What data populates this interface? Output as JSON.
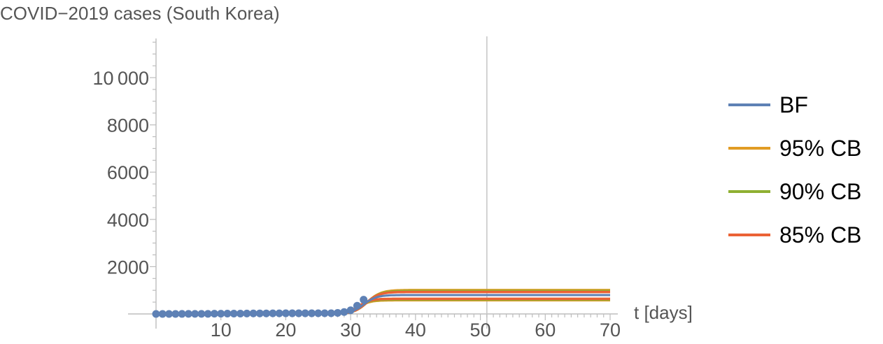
{
  "chart_data": {
    "type": "line",
    "title": "COVID−2019 cases (South Korea)",
    "xlabel": "t [days]",
    "ylabel": "",
    "xlim": [
      0,
      71
    ],
    "ylim": [
      -200,
      11800
    ],
    "xticks": [
      10,
      20,
      30,
      40,
      50,
      60,
      70
    ],
    "yticks": [
      2000,
      4000,
      6000,
      8000,
      10000
    ],
    "ytick_labels": [
      "2000",
      "4000",
      "6000",
      "8000",
      "10 000"
    ],
    "xtick_labels": [
      "10",
      "20",
      "30",
      "40",
      "50",
      "60",
      "70"
    ],
    "vline_x": 51,
    "grid": false,
    "legend_position": "right",
    "series": [
      {
        "name": "BF",
        "color": "#5e81b5",
        "final": 800,
        "midpoint": 32,
        "rate": 1.0
      },
      {
        "name": "95% CB",
        "color": "#e19c24",
        "final": 1010,
        "midpoint": 32.6,
        "rate": 0.95
      },
      {
        "name": "90% CB",
        "color": "#8fb032",
        "final": 970,
        "midpoint": 32.5,
        "rate": 0.97
      },
      {
        "name": "85% CB",
        "color": "#eb6235",
        "final": 930,
        "midpoint": 32.4,
        "rate": 0.99
      }
    ],
    "lower_bounds": [
      {
        "color": "#e19c24",
        "final": 580
      },
      {
        "color": "#8fb032",
        "final": 610
      },
      {
        "color": "#eb6235",
        "final": 640
      }
    ],
    "points": {
      "color": "#5e81b5",
      "x": [
        0,
        1,
        2,
        3,
        4,
        5,
        6,
        7,
        8,
        9,
        10,
        11,
        12,
        13,
        14,
        15,
        16,
        17,
        18,
        19,
        20,
        21,
        22,
        23,
        24,
        25,
        26,
        27,
        28,
        29,
        30,
        31,
        32
      ],
      "y": [
        1,
        1,
        1,
        1,
        2,
        3,
        4,
        4,
        4,
        11,
        12,
        15,
        15,
        16,
        19,
        23,
        24,
        24,
        25,
        27,
        28,
        28,
        28,
        28,
        28,
        29,
        30,
        31,
        46,
        82,
        156,
        346,
        602
      ]
    }
  }
}
